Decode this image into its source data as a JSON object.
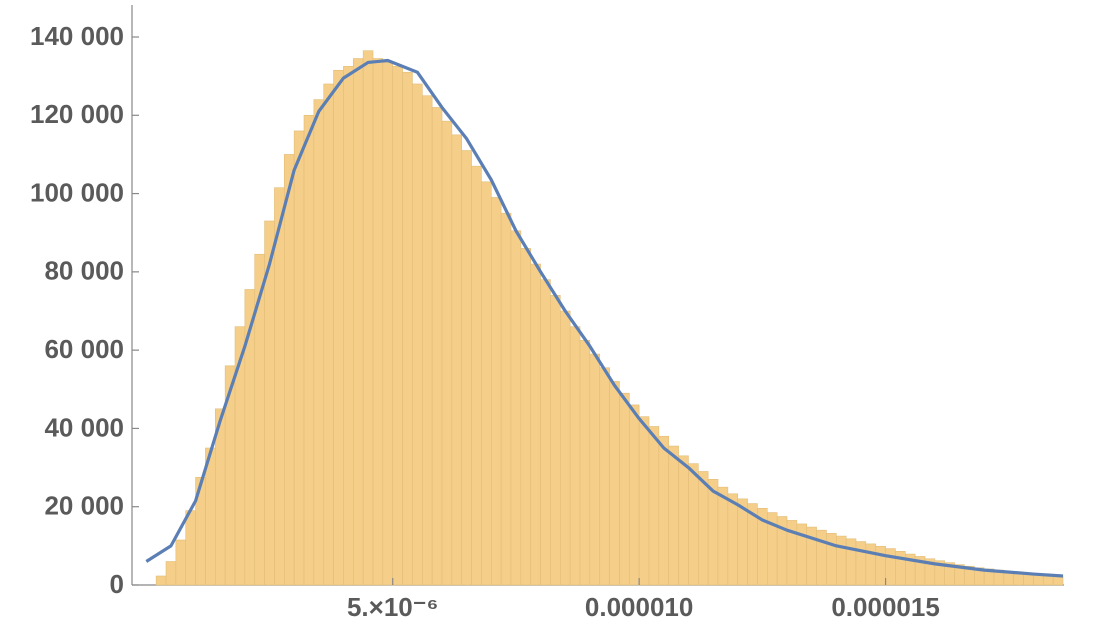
{
  "chart_data": {
    "type": "histogram",
    "bins": [
      2e-07,
      4e-07,
      6e-07,
      8e-07,
      1e-06,
      1.2e-06,
      1.4e-06,
      1.6e-06,
      1.8e-06,
      2e-06,
      2.2e-06,
      2.4e-06,
      2.6e-06,
      2.8e-06,
      3e-06,
      3.2e-06,
      3.4e-06,
      3.6e-06,
      3.8e-06,
      4e-06,
      4.2e-06,
      4.4e-06,
      4.6e-06,
      4.8e-06,
      5e-06,
      5.2e-06,
      5.4e-06,
      5.6e-06,
      5.8e-06,
      6e-06,
      6.2e-06,
      6.4e-06,
      6.6e-06,
      6.8e-06,
      7e-06,
      7.2e-06,
      7.4e-06,
      7.6e-06,
      7.8e-06,
      8e-06,
      8.2e-06,
      8.4e-06,
      8.6e-06,
      8.8e-06,
      9e-06,
      9.2e-06,
      9.4e-06,
      9.6e-06,
      9.8e-06,
      1e-05,
      1.02e-05,
      1.04e-05,
      1.06e-05,
      1.08e-05,
      1.1e-05,
      1.12e-05,
      1.14e-05,
      1.16e-05,
      1.18e-05,
      1.2e-05,
      1.22e-05,
      1.24e-05,
      1.26e-05,
      1.28e-05,
      1.3e-05,
      1.32e-05,
      1.34e-05,
      1.36e-05,
      1.38e-05,
      1.4e-05,
      1.42e-05,
      1.44e-05,
      1.46e-05,
      1.48e-05,
      1.5e-05,
      1.52e-05,
      1.54e-05,
      1.56e-05,
      1.58e-05,
      1.6e-05,
      1.62e-05,
      1.64e-05,
      1.66e-05,
      1.68e-05,
      1.7e-05,
      1.72e-05,
      1.74e-05,
      1.76e-05,
      1.78e-05,
      1.8e-05,
      1.82e-05,
      1.84e-05,
      1.86e-05
    ],
    "values": [
      2300,
      6000,
      11500,
      19000,
      27500,
      35000,
      45000,
      56000,
      66000,
      75500,
      84500,
      93000,
      101500,
      110000,
      116000,
      120000,
      124000,
      128000,
      131500,
      132500,
      134500,
      136500,
      134500,
      133500,
      132500,
      131000,
      128000,
      125000,
      122000,
      118500,
      115000,
      111000,
      107000,
      103000,
      99000,
      95000,
      90500,
      86000,
      82000,
      78000,
      74000,
      70000,
      66000,
      62500,
      59000,
      55500,
      52000,
      49000,
      46000,
      43000,
      40500,
      38000,
      35500,
      33000,
      31000,
      29000,
      27000,
      25000,
      23300,
      22000,
      20800,
      19600,
      18500,
      17500,
      16500,
      15600,
      14800,
      14000,
      13200,
      12500,
      11800,
      11100,
      10500,
      9900,
      9300,
      8600,
      7900,
      7300,
      6700,
      6200,
      5700,
      5200,
      4800,
      4400,
      4100,
      3800,
      3500,
      3200,
      2900,
      2700,
      2500,
      2300,
      2100
    ],
    "color": "#f5cf89",
    "edge_color": "#e2bd78",
    "overlay": {
      "type": "line",
      "color": "#5b7fb5",
      "x": [
        0,
        5e-07,
        1e-06,
        1.5e-06,
        2e-06,
        2.5e-06,
        3e-06,
        3.5e-06,
        4e-06,
        4.5e-06,
        4.9e-06,
        5.5e-06,
        6e-06,
        6.5e-06,
        7e-06,
        7.5e-06,
        8e-06,
        8.5e-06,
        9e-06,
        9.5e-06,
        1e-05,
        1.05e-05,
        1.1e-05,
        1.15e-05,
        1.2e-05,
        1.25e-05,
        1.3e-05,
        1.4e-05,
        1.5e-05,
        1.6e-05,
        1.7e-05,
        1.8e-05,
        1.86e-05
      ],
      "values": [
        6000,
        10000,
        21500,
        42000,
        61000,
        82000,
        106000,
        121000,
        129500,
        133500,
        134000,
        131000,
        122000,
        114000,
        103500,
        90500,
        80000,
        70000,
        61000,
        51000,
        42500,
        35000,
        30000,
        24000,
        20500,
        16600,
        14000,
        10000,
        7500,
        5400,
        3800,
        2800,
        2300
      ]
    },
    "xlim": [
      -2.9e-07,
      1.86e-05
    ],
    "ylim": [
      0,
      140000
    ],
    "xticks": [
      {
        "value": 5e-06,
        "label": "5.×10⁻⁶"
      },
      {
        "value": 1e-05,
        "label": "0.000010"
      },
      {
        "value": 1.5e-05,
        "label": "0.000015"
      }
    ],
    "yticks": [
      0,
      {
        "value": 20000,
        "label": "20 000"
      },
      {
        "value": 40000,
        "label": "40 000"
      },
      {
        "value": 60000,
        "label": "60 000"
      },
      {
        "value": 80000,
        "label": "80 000"
      },
      {
        "value": 100000,
        "label": "100 000"
      },
      {
        "value": 120000,
        "label": "120 000"
      },
      {
        "value": 140000,
        "label": "140 000"
      }
    ]
  }
}
